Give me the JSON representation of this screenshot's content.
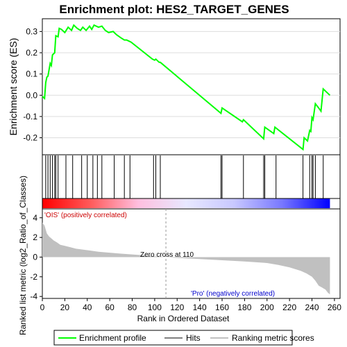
{
  "chart_data": [
    {
      "type": "line",
      "panel": "enrichment-profile",
      "title": "Enrichment plot: HES2_TARGET_GENES",
      "ylabel": "Enrichment score (ES)",
      "xlim": [
        0,
        265
      ],
      "ylim": [
        -0.28,
        0.36
      ],
      "yticks": [
        -0.2,
        -0.1,
        0.0,
        0.1,
        0.2,
        0.3
      ],
      "ytick_labels": [
        "-0.2",
        "-0.1",
        "0.0",
        "0.1",
        "0.2",
        "0.3"
      ],
      "series": [
        {
          "name": "Enrichment profile",
          "color": "#00ff00",
          "x": [
            0,
            2,
            3,
            4,
            5,
            7,
            8,
            9,
            11,
            12,
            14,
            15,
            17,
            20,
            23,
            26,
            28,
            31,
            34,
            36,
            39,
            42,
            44,
            46,
            48,
            50,
            53,
            56,
            59,
            63,
            66,
            70,
            73,
            75,
            77,
            79,
            98,
            100,
            101,
            104,
            105,
            159,
            160,
            178,
            179,
            197,
            198,
            206,
            207,
            232,
            233,
            236,
            238,
            239,
            240,
            241,
            243,
            246,
            248,
            250,
            256
          ],
          "y": [
            -0.005,
            -0.015,
            0.06,
            0.085,
            0.09,
            0.15,
            0.14,
            0.19,
            0.2,
            0.28,
            0.275,
            0.315,
            0.31,
            0.295,
            0.32,
            0.305,
            0.33,
            0.315,
            0.305,
            0.32,
            0.305,
            0.325,
            0.31,
            0.33,
            0.325,
            0.32,
            0.325,
            0.305,
            0.295,
            0.3,
            0.285,
            0.27,
            0.26,
            0.26,
            0.255,
            0.25,
            0.17,
            0.165,
            0.17,
            0.155,
            0.155,
            -0.085,
            -0.06,
            -0.125,
            -0.115,
            -0.205,
            -0.15,
            -0.18,
            -0.15,
            -0.255,
            -0.2,
            -0.215,
            -0.165,
            -0.17,
            -0.105,
            -0.115,
            -0.04,
            -0.06,
            -0.075,
            0.03,
            0.0
          ]
        }
      ]
    },
    {
      "type": "rug",
      "panel": "hits",
      "series": [
        {
          "name": "Hits",
          "x": [
            3,
            5,
            7,
            9,
            11,
            12,
            14,
            21,
            27,
            35,
            40,
            45,
            49,
            53,
            64,
            73,
            78,
            99,
            101,
            105,
            159,
            160,
            179,
            197,
            198,
            208,
            232,
            238,
            240,
            241,
            243,
            250
          ]
        }
      ]
    },
    {
      "type": "heatmap",
      "panel": "rank-color-bar",
      "gradient_stops": [
        "#ff0000",
        "#ff5a5a",
        "#ffbfdf",
        "#e8e8ff",
        "#c8c8ff",
        "#7878ff",
        "#0000ff"
      ],
      "x_range": [
        0,
        256
      ]
    },
    {
      "type": "area",
      "panel": "ranked-list-metric",
      "ylabel": "Ranked list metric (log2_Ratio_of_Classes)",
      "xlabel": "Rank in Ordered Dataset",
      "xlim": [
        0,
        265
      ],
      "ylim": [
        -4.2,
        4.9
      ],
      "xticks": [
        0,
        20,
        40,
        60,
        80,
        100,
        120,
        140,
        160,
        180,
        200,
        220,
        240,
        260
      ],
      "xtick_labels": [
        "0",
        "20",
        "40",
        "60",
        "80",
        "100",
        "120",
        "140",
        "160",
        "180",
        "200",
        "220",
        "240",
        "260"
      ],
      "yticks": [
        -4,
        -2,
        0,
        2,
        4
      ],
      "ytick_labels": [
        "-4",
        "-2",
        "0",
        "2",
        "4"
      ],
      "zero_cross": 110,
      "series": [
        {
          "name": "Ranking metric scores",
          "x": [
            0,
            2,
            4,
            6,
            8,
            10,
            13,
            16,
            20,
            25,
            30,
            40,
            50,
            60,
            70,
            80,
            90,
            100,
            110,
            120,
            140,
            160,
            180,
            200,
            210,
            220,
            230,
            235,
            240,
            243,
            246,
            249,
            252,
            254,
            256
          ],
          "y": [
            3.5,
            3.2,
            2.4,
            2.1,
            1.9,
            1.7,
            1.5,
            1.25,
            1.15,
            1.0,
            0.85,
            0.7,
            0.55,
            0.45,
            0.35,
            0.27,
            0.18,
            0.09,
            0.0,
            -0.08,
            -0.2,
            -0.32,
            -0.45,
            -0.6,
            -0.8,
            -1.05,
            -1.4,
            -1.65,
            -2.0,
            -2.4,
            -2.9,
            -3.1,
            -3.3,
            -3.6,
            -3.8
          ]
        }
      ]
    }
  ],
  "annotations": {
    "positive_label": "'OIS' (positively correlated)",
    "negative_label": "'Pro' (negatively correlated)",
    "zero_cross_label": "Zero cross at 110"
  },
  "legend": {
    "placement": "bottom",
    "items": [
      {
        "label": "Enrichment profile",
        "color": "#00ff00"
      },
      {
        "label": "Hits",
        "color": "#000000"
      },
      {
        "label": "Ranking metric scores",
        "color": "#c0c0c0"
      }
    ]
  },
  "colors": {
    "profile": "#00ff00",
    "metric_fill": "#c0c0c0",
    "positive_text": "#cc0000",
    "negative_text": "#0000cc",
    "grid": "#dddddd"
  }
}
